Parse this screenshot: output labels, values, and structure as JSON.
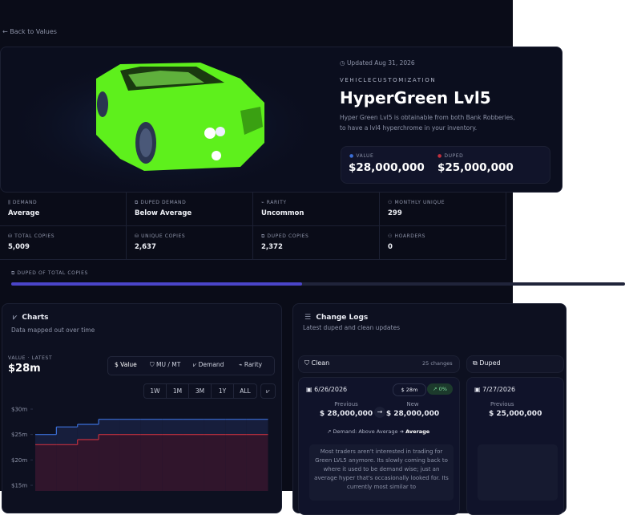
{
  "nav": {
    "back": "Back to Values"
  },
  "item": {
    "updated": "Updated Aug 31, 2026",
    "category": "VEHICLECUSTOMIZATION",
    "title": "HyperGreen Lvl5",
    "description": [
      "Hyper Green Lvl5 is obtainable from both Bank Robberies,",
      "to have a lvl4 hyperchrome in your inventory."
    ],
    "value_label": "VALUE",
    "value": "$28,000,000",
    "duped_label": "DUPED",
    "duped": "$25,000,000"
  },
  "stats": [
    {
      "label": "DEMAND",
      "value": "Average"
    },
    {
      "label": "DUPED DEMAND",
      "value": "Below Average"
    },
    {
      "label": "RARITY",
      "value": "Uncommon"
    },
    {
      "label": "MONTHLY UNIQUE",
      "value": "299"
    },
    {
      "label": "TOTAL COPIES",
      "value": "5,009"
    },
    {
      "label": "UNIQUE COPIES",
      "value": "2,637"
    },
    {
      "label": "DUPED COPIES",
      "value": "2,372"
    },
    {
      "label": "HOARDERS",
      "value": "0"
    }
  ],
  "progress": {
    "label": "DUPED OF TOTAL COPIES",
    "percent": 47.4
  },
  "charts": {
    "title": "Charts",
    "subtitle": "Data mapped out over time",
    "latest_label": "VALUE · LATEST",
    "latest": "$28m",
    "tabs": [
      "Value",
      "MU / MT",
      "Demand",
      "Rarity"
    ],
    "ranges": [
      "1W",
      "1M",
      "3M",
      "1Y",
      "ALL"
    ]
  },
  "chart_data": {
    "type": "line",
    "step": true,
    "categories": [
      null,
      null,
      null,
      null,
      null,
      null,
      null,
      null,
      null,
      null,
      null,
      null
    ],
    "series": [
      {
        "color": "#3b6fd8",
        "fill": "#18203f",
        "values": [
          25,
          26.5,
          27,
          28,
          28,
          28,
          28,
          28,
          28,
          28,
          28,
          28
        ]
      },
      {
        "color": "#c2303e",
        "fill": "#33142a",
        "values": [
          23,
          23,
          24,
          25,
          25,
          25,
          25,
          25,
          25,
          25,
          25,
          25
        ]
      }
    ],
    "ylim": [
      15,
      30
    ],
    "yticks": [
      {
        "value": 15,
        "label": "$15m"
      },
      {
        "value": 20,
        "label": "$20m"
      },
      {
        "value": 25,
        "label": "$25m"
      },
      {
        "value": 30,
        "label": "$30m"
      }
    ],
    "grid": false
  },
  "change_logs": {
    "title": "Change Logs",
    "subtitle": "Latest duped and clean updates",
    "tabs": [
      {
        "label": "Clean",
        "count": "25 changes"
      },
      {
        "label": "Duped"
      }
    ],
    "entries": [
      {
        "date": "6/26/2026",
        "value_chip": "$ 28m",
        "change_chip": "0%",
        "previous_label": "Previous",
        "previous": "$ 28,000,000",
        "new_label": "New",
        "new": "$ 28,000,000",
        "demand_label": "Demand: Above Average",
        "demand_new": "Average",
        "note": "Most traders aren't interested in trading for Green LVL5 anymore. Its slowly coming back to where it used to be demand wise; just an average hyper that's occasionally looked for. Its currently most similar to"
      },
      {
        "date": "7/27/2026",
        "previous_label": "Previous",
        "previous": "$ 25,000,000"
      }
    ]
  }
}
